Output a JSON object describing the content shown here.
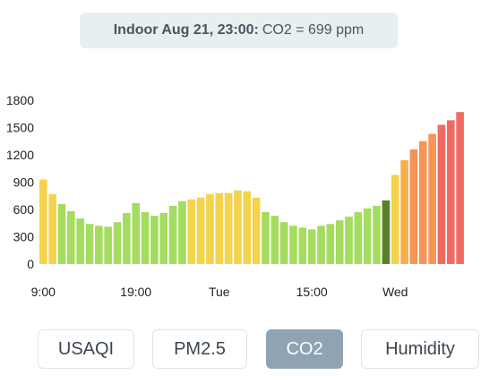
{
  "header": {
    "bold": "Indoor Aug 21, 23:00:",
    "value": "CO2 = 699 ppm"
  },
  "tabs": [
    {
      "label": "USAQI",
      "active": false
    },
    {
      "label": "PM2.5",
      "active": false
    },
    {
      "label": "CO2",
      "active": true
    },
    {
      "label": "Humidity",
      "active": false
    }
  ],
  "colors": {
    "green": "#a3dc5e",
    "yellow": "#f6d34c",
    "orange1": "#f5b04c",
    "orange2": "#f59456",
    "red": "#ef6a63",
    "selected": "#5e7f2a",
    "tab_active": "#8fa3b3"
  },
  "chart_data": {
    "type": "bar",
    "ylim": [
      0,
      1800
    ],
    "yticks": [
      "0",
      "300",
      "600",
      "900",
      "1200",
      "1500",
      "1800"
    ],
    "xticks": [
      {
        "label": "9:00",
        "index": 0
      },
      {
        "label": "19:00",
        "index": 10
      },
      {
        "label": "Tue",
        "index": 19
      },
      {
        "label": "15:00",
        "index": 29
      },
      {
        "label": "Wed",
        "index": 38
      }
    ],
    "selected_index": 37,
    "values": [
      930,
      770,
      660,
      580,
      500,
      440,
      420,
      410,
      460,
      560,
      670,
      570,
      530,
      560,
      640,
      690,
      710,
      730,
      770,
      780,
      780,
      810,
      800,
      730,
      570,
      530,
      460,
      420,
      400,
      380,
      420,
      440,
      480,
      520,
      570,
      610,
      640,
      699,
      980,
      1140,
      1260,
      1350,
      1430,
      1530,
      1580,
      1670
    ]
  }
}
